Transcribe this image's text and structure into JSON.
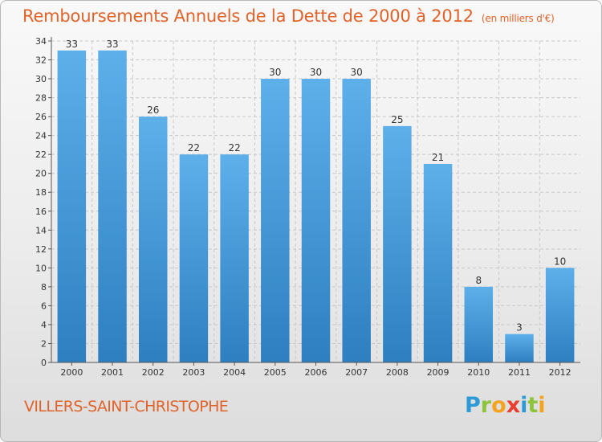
{
  "title": "Remboursements Annuels de la Dette de 2000 à 2012",
  "unit_note": "(en milliers d'€)",
  "location": "VILLERS-SAINT-CHRISTOPHE",
  "logo": [
    "P",
    "r",
    "o",
    "x",
    "i",
    "t",
    "i"
  ],
  "colors": {
    "accent": "#e0632a",
    "bar_top": "#5db0ea",
    "bar_bottom": "#2d7fc0",
    "grid": "#c8c8c8"
  },
  "chart_data": {
    "type": "bar",
    "title": "Remboursements Annuels de la Dette de 2000 à 2012",
    "xlabel": "",
    "ylabel": "",
    "categories": [
      "2000",
      "2001",
      "2002",
      "2003",
      "2004",
      "2005",
      "2006",
      "2007",
      "2008",
      "2009",
      "2010",
      "2011",
      "2012"
    ],
    "values": [
      33,
      33,
      26,
      22,
      22,
      30,
      30,
      30,
      25,
      21,
      8,
      3,
      10
    ],
    "ylim": [
      0,
      34
    ],
    "yticks": [
      0,
      2,
      4,
      6,
      8,
      10,
      12,
      14,
      16,
      18,
      20,
      22,
      24,
      26,
      28,
      30,
      32,
      34
    ],
    "grid": true,
    "data_labels": true
  }
}
